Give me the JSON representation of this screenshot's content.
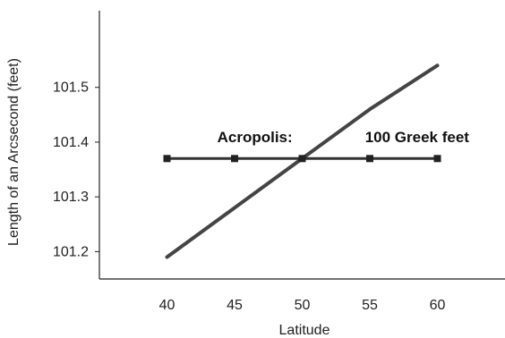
{
  "chart_data": {
    "type": "line",
    "xlabel": "Latitude",
    "ylabel": "Length of an Arcsecond (feet)",
    "xlim": [
      35,
      65
    ],
    "ylim": [
      101.15,
      101.64
    ],
    "xticks": [
      "40",
      "45",
      "50",
      "55",
      "60"
    ],
    "yticks": [
      "101.2",
      "101.3",
      "101.4",
      "101.5"
    ],
    "grid": false,
    "series": [
      {
        "x": [
          40,
          45,
          50,
          55,
          60
        ],
        "y": [
          101.19,
          101.28,
          101.37,
          101.46,
          101.54
        ],
        "color": "#444444",
        "markers": false
      },
      {
        "x": [
          40,
          45,
          50,
          55,
          60
        ],
        "y": [
          101.37,
          101.37,
          101.37,
          101.37,
          101.37
        ],
        "color": "#333333",
        "markers": true
      }
    ],
    "annotations": [
      {
        "text": "Acropolis:",
        "x": 46.5,
        "y": 101.4
      },
      {
        "text": "100 Greek feet",
        "x": 58.5,
        "y": 101.4
      }
    ]
  }
}
